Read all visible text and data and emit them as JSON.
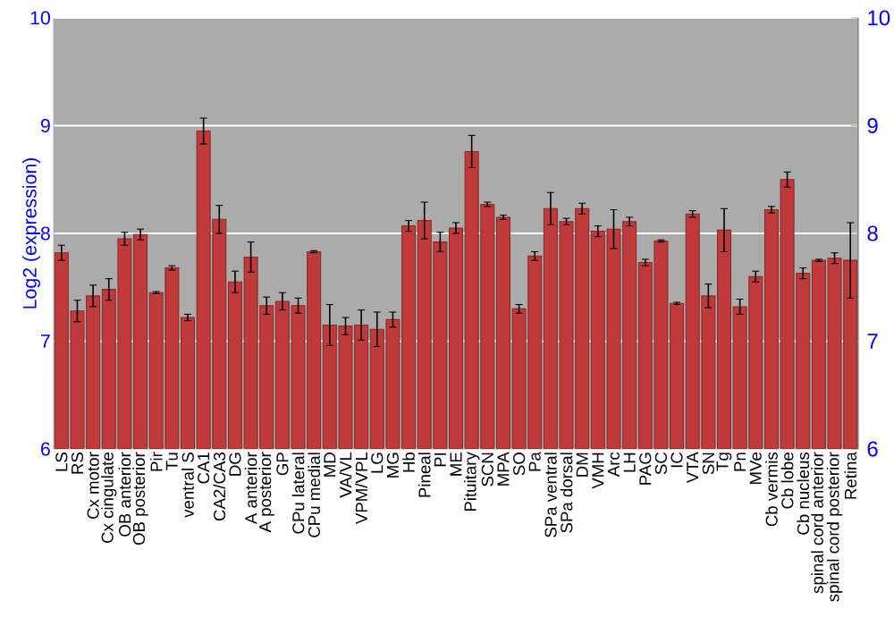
{
  "chart_data": {
    "type": "bar",
    "ylabel": "Log2 (expression)",
    "categories": [
      "LS",
      "RS",
      "Cx motor",
      "Cx cingulate",
      "OB anterior",
      "OB posterior",
      "Pir",
      "Tu",
      "ventral S",
      "CA1",
      "CA2/CA3",
      "DG",
      "A anterior",
      "A posterior",
      "GP",
      "CPu lateral",
      "CPu medial",
      "MD",
      "VA/VL",
      "VPM/VPL",
      "LG",
      "MG",
      "Hb",
      "Pineal",
      "PI",
      "ME",
      "Pituitary",
      "SCN",
      "MPA",
      "SO",
      "Pa",
      "SPa ventral",
      "SPa dorsal",
      "DM",
      "VMH",
      "Arc",
      "LH",
      "PAG",
      "SC",
      "IC",
      "VTA",
      "SN",
      "Tg",
      "Pn",
      "MVe",
      "Cb vermis",
      "Cb lobe",
      "Cb nucleus",
      "spinal cord anterior",
      "spinal cord posterior",
      "Retina"
    ],
    "values": [
      7.82,
      7.28,
      7.42,
      7.48,
      7.95,
      7.99,
      7.45,
      7.68,
      7.22,
      8.95,
      8.13,
      7.55,
      7.78,
      7.33,
      7.37,
      7.33,
      7.83,
      7.15,
      7.14,
      7.15,
      7.11,
      7.2,
      8.07,
      8.12,
      7.92,
      8.05,
      8.76,
      8.27,
      8.15,
      7.3,
      7.79,
      8.23,
      8.11,
      8.23,
      8.02,
      8.04,
      8.11,
      7.73,
      7.93,
      7.35,
      8.18,
      7.42,
      8.03,
      7.32,
      7.6,
      8.22,
      8.5,
      7.63,
      7.75,
      7.77,
      7.75
    ],
    "errors": [
      0.07,
      0.1,
      0.1,
      0.1,
      0.06,
      0.05,
      0.01,
      0.02,
      0.03,
      0.12,
      0.13,
      0.1,
      0.14,
      0.08,
      0.08,
      0.07,
      0.01,
      0.19,
      0.08,
      0.14,
      0.16,
      0.07,
      0.05,
      0.17,
      0.09,
      0.05,
      0.15,
      0.02,
      0.02,
      0.04,
      0.04,
      0.15,
      0.03,
      0.05,
      0.05,
      0.18,
      0.04,
      0.03,
      0.01,
      0.01,
      0.03,
      0.11,
      0.2,
      0.07,
      0.05,
      0.03,
      0.07,
      0.05,
      0.01,
      0.05,
      0.35
    ],
    "color": "#c03a3a",
    "ylim": [
      6,
      10
    ],
    "yticks": [
      6,
      7,
      8,
      9,
      10
    ],
    "y2lim": [
      6,
      10
    ],
    "y2ticks": [
      6,
      7,
      8,
      9,
      10
    ],
    "grid": "y"
  }
}
